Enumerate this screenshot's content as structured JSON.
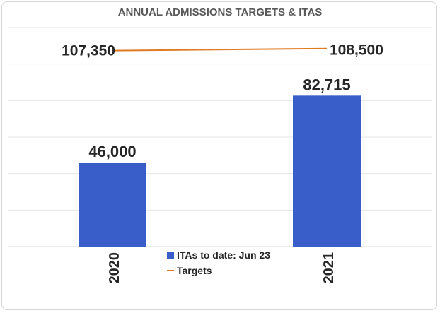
{
  "chart_data": {
    "type": "bar",
    "title": "ANNUAL ADMISSIONS TARGETS & ITAS",
    "categories": [
      "2020",
      "2021"
    ],
    "series": [
      {
        "name": "ITAs to date: Jun 23",
        "kind": "bar",
        "color": "#3a5ec9",
        "values": [
          46000,
          82715
        ],
        "labels": [
          "46,000",
          "82,715"
        ]
      },
      {
        "name": "Targets",
        "kind": "line",
        "color": "#e07b24",
        "values": [
          107350,
          108500
        ],
        "labels": [
          "107,350",
          "108,500"
        ]
      }
    ],
    "ylim": [
      0,
      120000
    ],
    "grid": true,
    "legend_position": "bottom-center"
  }
}
